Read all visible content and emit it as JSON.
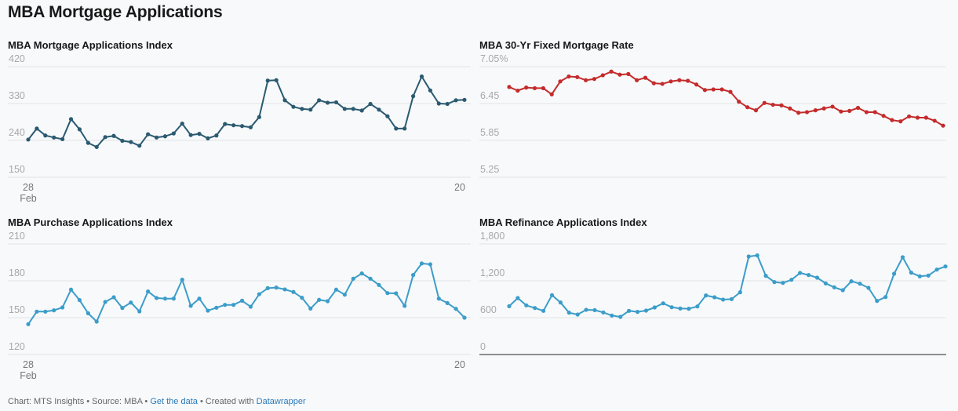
{
  "page": {
    "title": "MBA Mortgage Applications"
  },
  "footer": {
    "chart_by": "Chart: MTS Insights",
    "sep1": " • ",
    "source": "Source: MBA",
    "sep2": " • ",
    "get_data": "Get the data",
    "sep3": " • ",
    "created_with": "Created with ",
    "datawrapper": "Datawrapper"
  },
  "chart_data": [
    {
      "type": "line",
      "title": "MBA Mortgage Applications Index",
      "color": "#2a5a70",
      "ylim": [
        150,
        420
      ],
      "yticks": [
        "420",
        "330",
        "240",
        "150"
      ],
      "ytick_values": [
        420,
        330,
        240,
        150
      ],
      "xtick_labels": [
        {
          "day": "28",
          "month": "Feb"
        },
        {
          "day": "20",
          "month": ""
        }
      ],
      "values": [
        242,
        269,
        252,
        247,
        243,
        292,
        267,
        234,
        224,
        248,
        251,
        239,
        236,
        227,
        255,
        247,
        250,
        257,
        281,
        253,
        256,
        245,
        252,
        280,
        277,
        275,
        272,
        297,
        386,
        387,
        338,
        322,
        317,
        315,
        338,
        332,
        333,
        317,
        317,
        313,
        329,
        315,
        299,
        269,
        269,
        348,
        396,
        362,
        330,
        329,
        338,
        339
      ]
    },
    {
      "type": "line",
      "title": "MBA 30-Yr Fixed Mortgage Rate",
      "color": "#c42b2b",
      "ylim": [
        5.25,
        7.05
      ],
      "yticks": [
        "7.05%",
        "6.45",
        "5.85",
        "5.25"
      ],
      "ytick_values": [
        7.05,
        6.45,
        5.85,
        5.25
      ],
      "xtick_labels": [],
      "values": [
        6.72,
        6.66,
        6.71,
        6.7,
        6.7,
        6.6,
        6.81,
        6.89,
        6.88,
        6.83,
        6.85,
        6.91,
        6.97,
        6.92,
        6.93,
        6.83,
        6.87,
        6.78,
        6.77,
        6.81,
        6.83,
        6.82,
        6.76,
        6.67,
        6.68,
        6.68,
        6.64,
        6.48,
        6.39,
        6.34,
        6.46,
        6.43,
        6.42,
        6.37,
        6.3,
        6.31,
        6.34,
        6.37,
        6.4,
        6.32,
        6.33,
        6.38,
        6.31,
        6.31,
        6.25,
        6.18,
        6.16,
        6.24,
        6.22,
        6.22,
        6.17,
        6.09
      ]
    },
    {
      "type": "line",
      "title": "MBA Purchase Applications Index",
      "color": "#3b9dc9",
      "ylim": [
        120,
        210
      ],
      "yticks": [
        "210",
        "180",
        "150",
        "120"
      ],
      "ytick_values": [
        210,
        180,
        150,
        120
      ],
      "xtick_labels": [
        {
          "day": "28",
          "month": "Feb"
        },
        {
          "day": "20",
          "month": ""
        }
      ],
      "values": [
        144.7,
        154.9,
        154.9,
        156,
        158.3,
        172.8,
        164.3,
        153.6,
        146.8,
        162.8,
        166.6,
        157.9,
        162.3,
        155.1,
        171.3,
        166,
        165.5,
        165.5,
        180.9,
        159.6,
        165.5,
        155.7,
        158.1,
        160.4,
        160.4,
        163.8,
        158.9,
        169.1,
        174,
        174.5,
        173,
        170.9,
        166.2,
        157.4,
        164.5,
        163.4,
        172.8,
        168.7,
        181.7,
        186,
        181.7,
        176.6,
        170,
        169.8,
        159.6,
        184.7,
        194.1,
        193.4,
        165.5,
        161.9,
        157.2,
        150
      ]
    },
    {
      "type": "line",
      "title": "MBA Refinance Applications Index",
      "color": "#3b9dc9",
      "ylim": [
        0,
        1800
      ],
      "yticks": [
        "1,800",
        "1,200",
        "600",
        "0"
      ],
      "ytick_values": [
        1800,
        1200,
        600,
        0
      ],
      "xtick_labels": [],
      "values": [
        787,
        919,
        800,
        757,
        711,
        966,
        847,
        681,
        651,
        728,
        723,
        685,
        634,
        613,
        711,
        694,
        715,
        766,
        834,
        770,
        749,
        745,
        783,
        962,
        932,
        894,
        902,
        1013,
        1596,
        1613,
        1281,
        1179,
        1166,
        1217,
        1328,
        1294,
        1251,
        1158,
        1094,
        1047,
        1192,
        1153,
        1085,
        872,
        936,
        1315,
        1583,
        1332,
        1273,
        1285,
        1383,
        1434
      ]
    }
  ]
}
